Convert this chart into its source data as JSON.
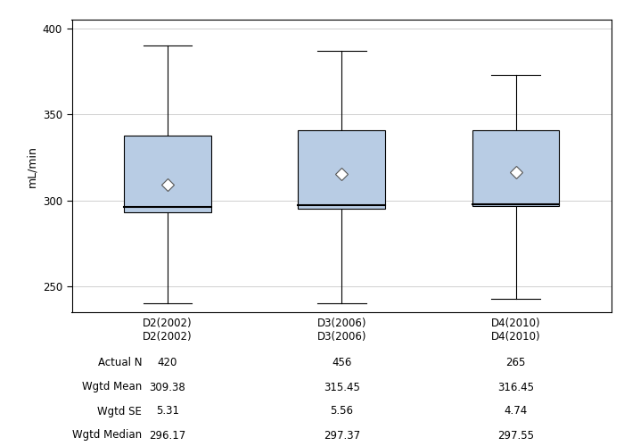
{
  "categories": [
    "D2(2002)",
    "D3(2006)",
    "D4(2010)"
  ],
  "box_data": [
    {
      "q1": 293,
      "median": 296.17,
      "q3": 338,
      "whisker_low": 240,
      "whisker_high": 390,
      "mean": 309.38
    },
    {
      "q1": 295,
      "median": 297.37,
      "q3": 341,
      "whisker_low": 240,
      "whisker_high": 387,
      "mean": 315.45
    },
    {
      "q1": 297,
      "median": 297.55,
      "q3": 341,
      "whisker_low": 243,
      "whisker_high": 373,
      "mean": 316.45
    }
  ],
  "ylim": [
    235,
    405
  ],
  "yticks": [
    250,
    300,
    350,
    400
  ],
  "ylabel": "mL/min",
  "box_color": "#b8cce4",
  "box_edge_color": "#000000",
  "median_color": "#000000",
  "whisker_color": "#000000",
  "mean_marker_color": "white",
  "mean_marker_edge_color": "#555555",
  "table_labels": [
    "Actual N",
    "Wgtd Mean",
    "Wgtd SE",
    "Wgtd Median"
  ],
  "table_data": [
    [
      "420",
      "309.38",
      "5.31",
      "296.17"
    ],
    [
      "456",
      "315.45",
      "5.56",
      "297.37"
    ],
    [
      "265",
      "316.45",
      "4.74",
      "297.55"
    ]
  ],
  "fig_bg": "#ffffff",
  "plot_bg": "#ffffff",
  "grid_color": "#d0d0d0",
  "positions": [
    1,
    2,
    3
  ],
  "box_width": 0.5,
  "xlim": [
    0.45,
    3.55
  ]
}
